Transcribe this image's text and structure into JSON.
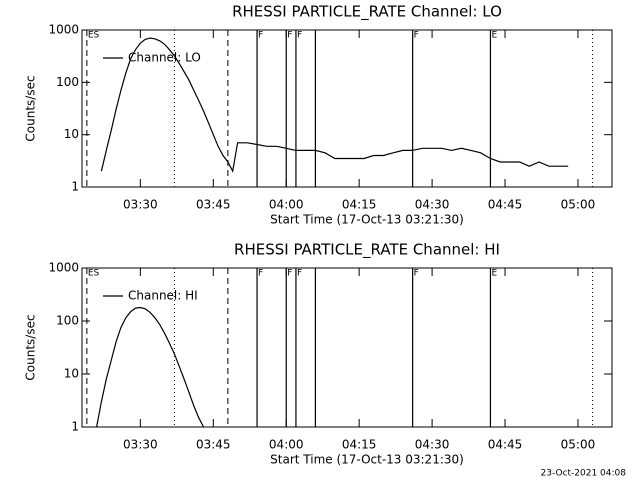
{
  "chart_data": [
    {
      "type": "line",
      "title": "RHESSI PARTICLE_RATE Channel: LO",
      "xlabel": "Start Time (17-Oct-13 03:21:30)",
      "ylabel": "Counts/sec",
      "x": [
        "03:22",
        "03:23",
        "03:24",
        "03:25",
        "03:26",
        "03:27",
        "03:28",
        "03:29",
        "03:30",
        "03:31",
        "03:32",
        "03:33",
        "03:34",
        "03:35",
        "03:36",
        "03:37",
        "03:38",
        "03:39",
        "03:40",
        "03:41",
        "03:42",
        "03:43",
        "03:44",
        "03:45",
        "03:46",
        "03:47",
        "03:48",
        "03:49",
        "03:50",
        "03:52",
        "03:54",
        "03:56",
        "03:58",
        "04:00",
        "04:02",
        "04:04",
        "04:06",
        "04:08",
        "04:10",
        "04:12",
        "04:14",
        "04:16",
        "04:18",
        "04:20",
        "04:22",
        "04:24",
        "04:26",
        "04:28",
        "04:30",
        "04:32",
        "04:34",
        "04:36",
        "04:38",
        "04:40",
        "04:42",
        "04:44",
        "04:46",
        "04:48",
        "04:50",
        "04:52",
        "04:54",
        "04:56",
        "04:58"
      ],
      "series": [
        {
          "name": "Channel: LO",
          "color": "#000000",
          "values": [
            2,
            5,
            12,
            30,
            70,
            150,
            280,
            420,
            560,
            660,
            700,
            680,
            620,
            530,
            420,
            320,
            230,
            160,
            110,
            70,
            45,
            28,
            17,
            10,
            6,
            4,
            3,
            2,
            7,
            7,
            6.5,
            6,
            6,
            5.5,
            5,
            5,
            5,
            4.5,
            3.5,
            3.5,
            3.5,
            3.5,
            4,
            4,
            4.5,
            5,
            5,
            5.5,
            5.5,
            5.5,
            5,
            5.5,
            5,
            4.5,
            3.5,
            3,
            3,
            3,
            2.5,
            3,
            2.5,
            2.5,
            2.5
          ]
        }
      ],
      "xlim": [
        "03:18",
        "05:07"
      ],
      "xticks": [
        "03:30",
        "03:45",
        "04:00",
        "04:15",
        "04:30",
        "04:45",
        "05:00"
      ],
      "ylim": [
        1,
        1000
      ],
      "yticks": [
        1,
        10,
        100,
        1000
      ],
      "log_y": true,
      "legend": "upper left",
      "markers": [
        {
          "x": "03:19",
          "style": "dashed",
          "label": "ES"
        },
        {
          "x": "03:37",
          "style": "dotted"
        },
        {
          "x": "03:48",
          "style": "dashed"
        },
        {
          "x": "03:54",
          "style": "solid",
          "label": "F"
        },
        {
          "x": "04:00",
          "style": "solid",
          "label": "F"
        },
        {
          "x": "04:02",
          "style": "solid",
          "label": "F"
        },
        {
          "x": "04:06",
          "style": "solid"
        },
        {
          "x": "04:26",
          "style": "solid",
          "label": "F"
        },
        {
          "x": "04:42",
          "style": "solid",
          "label": "E"
        },
        {
          "x": "05:03",
          "style": "dotted"
        }
      ]
    },
    {
      "type": "line",
      "title": "RHESSI PARTICLE_RATE Channel: HI",
      "xlabel": "Start Time (17-Oct-13 03:21:30)",
      "ylabel": "Counts/sec",
      "x": [
        "03:21",
        "03:22",
        "03:23",
        "03:24",
        "03:25",
        "03:26",
        "03:27",
        "03:28",
        "03:29",
        "03:30",
        "03:31",
        "03:32",
        "03:33",
        "03:34",
        "03:35",
        "03:36",
        "03:37",
        "03:38",
        "03:39",
        "03:40",
        "03:41",
        "03:42",
        "03:43"
      ],
      "series": [
        {
          "name": "Channel: HI",
          "color": "#000000",
          "values": [
            1,
            3,
            8,
            18,
            40,
            75,
            115,
            150,
            175,
            180,
            170,
            145,
            115,
            85,
            58,
            38,
            24,
            14,
            8,
            4.5,
            2.5,
            1.5,
            1
          ]
        }
      ],
      "xlim": [
        "03:18",
        "05:07"
      ],
      "xticks": [
        "03:30",
        "03:45",
        "04:00",
        "04:15",
        "04:30",
        "04:45",
        "05:00"
      ],
      "ylim": [
        1,
        1000
      ],
      "yticks": [
        1,
        10,
        100,
        1000
      ],
      "log_y": true,
      "legend": "upper left",
      "markers": [
        {
          "x": "03:19",
          "style": "dashed",
          "label": "ES"
        },
        {
          "x": "03:37",
          "style": "dotted"
        },
        {
          "x": "03:48",
          "style": "dashed"
        },
        {
          "x": "03:54",
          "style": "solid",
          "label": "F"
        },
        {
          "x": "04:00",
          "style": "solid",
          "label": "F"
        },
        {
          "x": "04:02",
          "style": "solid",
          "label": "F"
        },
        {
          "x": "04:06",
          "style": "solid"
        },
        {
          "x": "04:26",
          "style": "solid",
          "label": "F"
        },
        {
          "x": "04:42",
          "style": "solid",
          "label": "E"
        },
        {
          "x": "05:03",
          "style": "dotted"
        }
      ]
    }
  ],
  "footer": "23-Oct-2021 04:08"
}
